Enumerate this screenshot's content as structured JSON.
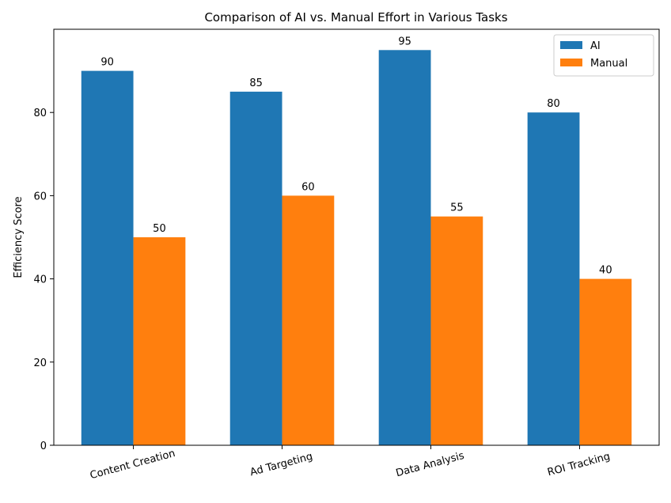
{
  "chart_data": {
    "type": "bar",
    "title": "Comparison of AI vs. Manual Effort in Various Tasks",
    "xlabel": "",
    "ylabel": "Efficiency Score",
    "categories": [
      "Content Creation",
      "Ad Targeting",
      "Data Analysis",
      "ROI Tracking"
    ],
    "series": [
      {
        "name": "AI",
        "values": [
          90,
          85,
          95,
          80
        ],
        "color": "#1f77b4"
      },
      {
        "name": "Manual",
        "values": [
          50,
          60,
          55,
          40
        ],
        "color": "#ff7f0e"
      }
    ],
    "ylim": [
      0,
      100
    ],
    "yticks": [
      0,
      20,
      40,
      60,
      80
    ],
    "grid": false,
    "legend": "top-right",
    "data_labels": true
  }
}
